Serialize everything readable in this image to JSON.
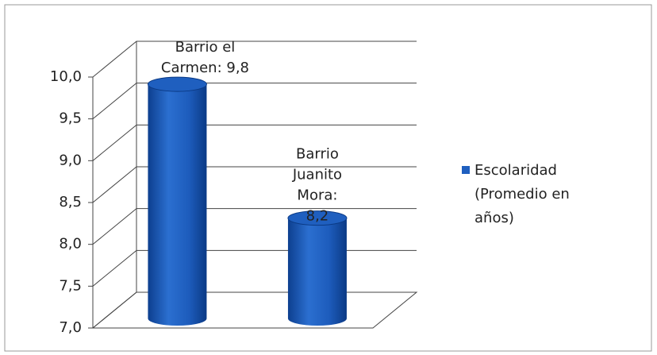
{
  "chart_data": {
    "type": "cylinder",
    "categories": [
      "Barrio el Carmen",
      "Barrio Juanito Mora"
    ],
    "series": [
      {
        "name": "Escolaridad (Promedio en años)",
        "color": "#1f5fbf",
        "values": [
          9.8,
          8.2
        ],
        "value_labels": [
          "Barrio el Carmen: 9,8",
          "Barrio Juanito Mora: 8,2"
        ]
      }
    ],
    "ylim": [
      7,
      10
    ],
    "yticks": [
      {
        "value": 7,
        "label": "7,0"
      },
      {
        "value": 7.5,
        "label": "7,5"
      },
      {
        "value": 8,
        "label": "8,0"
      },
      {
        "value": 8.5,
        "label": "8,5"
      },
      {
        "value": 9,
        "label": "9,0"
      },
      {
        "value": 9.5,
        "label": "9,5"
      },
      {
        "value": 10,
        "label": "10,0"
      }
    ],
    "grid": true,
    "legend": "right"
  }
}
